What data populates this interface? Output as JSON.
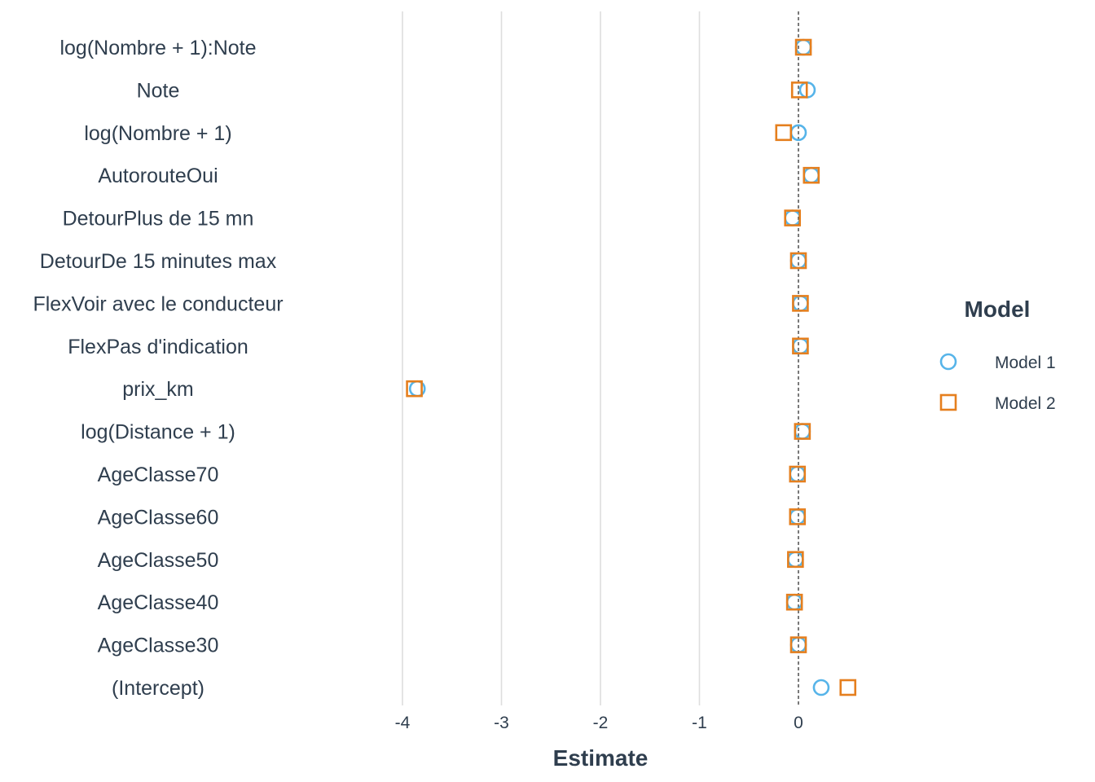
{
  "chart_data": {
    "type": "scatter",
    "title": "",
    "xlabel": "Estimate",
    "ylabel": "",
    "xlim": [
      -4.0,
      0.7
    ],
    "x_ticks": [
      -4,
      -3,
      -2,
      -1,
      0
    ],
    "x_tick_labels": [
      "-4",
      "-3",
      "-2",
      "-1",
      "0"
    ],
    "reference_line": {
      "x": 0,
      "style": "dashed"
    },
    "grid": "vertical major gridlines",
    "categories": [
      "log(Nombre + 1):Note",
      "Note",
      "log(Nombre + 1)",
      "AutorouteOui",
      "DetourPlus de 15 mn",
      "DetourDe 15 minutes max",
      "FlexVoir avec le conducteur",
      "FlexPas d'indication",
      "prix_km",
      "log(Distance + 1)",
      "AgeClasse70",
      "AgeClasse60",
      "AgeClasse50",
      "AgeClasse40",
      "AgeClasse30",
      "(Intercept)"
    ],
    "series": [
      {
        "name": "Model 1",
        "marker": "circle",
        "color": "#56b4e9",
        "values": [
          0.05,
          0.09,
          0.0,
          0.13,
          -0.06,
          0.0,
          0.02,
          0.02,
          -3.85,
          0.04,
          -0.01,
          -0.01,
          -0.03,
          -0.04,
          0.0,
          0.23
        ]
      },
      {
        "name": "Model 2",
        "marker": "square",
        "color": "#e57f1e",
        "values": [
          0.05,
          0.01,
          -0.15,
          0.13,
          -0.06,
          0.0,
          0.02,
          0.02,
          -3.88,
          0.04,
          -0.01,
          -0.01,
          -0.03,
          -0.04,
          0.0,
          0.5
        ]
      }
    ],
    "legend": {
      "title": "Model",
      "position": "right"
    }
  }
}
